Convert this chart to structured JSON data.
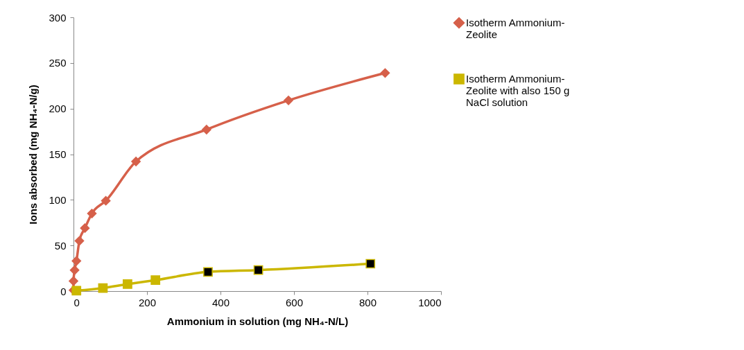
{
  "chart_data": {
    "type": "line",
    "xlabel": "Ammonium in solution (mg NH₄-N/L)",
    "ylabel": "Ions absorbed (mg NH₄-N/g)",
    "xlim": [
      0,
      1000
    ],
    "xticks": [
      0,
      200,
      400,
      600,
      800,
      1000
    ],
    "ylim": [
      0,
      300
    ],
    "yticks": [
      0,
      50,
      100,
      150,
      200,
      250,
      300
    ],
    "grid": false,
    "legend": "right",
    "line_style": "solid",
    "series": [
      {
        "name": "Isotherm Ammonium-Zeolite",
        "color": "#d6604a",
        "marker": "diamond",
        "x": [
          0,
          0,
          3,
          8,
          16,
          31,
          50,
          88,
          170,
          362,
          585,
          848
        ],
        "values": [
          1,
          11,
          23,
          33,
          55,
          69,
          85,
          99,
          142,
          177,
          209,
          239
        ]
      },
      {
        "name": "Isotherm Ammonium-Zeolite with also 150 g NaCl solution",
        "color": "#cbb700",
        "marker": "square",
        "x": [
          8,
          80,
          147,
          223,
          366,
          503,
          808
        ],
        "values": [
          0.5,
          3.3,
          7.6,
          12,
          21,
          23,
          30
        ],
        "colors": [
          "#cbb700",
          "#cbb700",
          "#cbb700",
          "#cbb700",
          "#000000",
          "#000000",
          "#000000"
        ]
      }
    ]
  }
}
